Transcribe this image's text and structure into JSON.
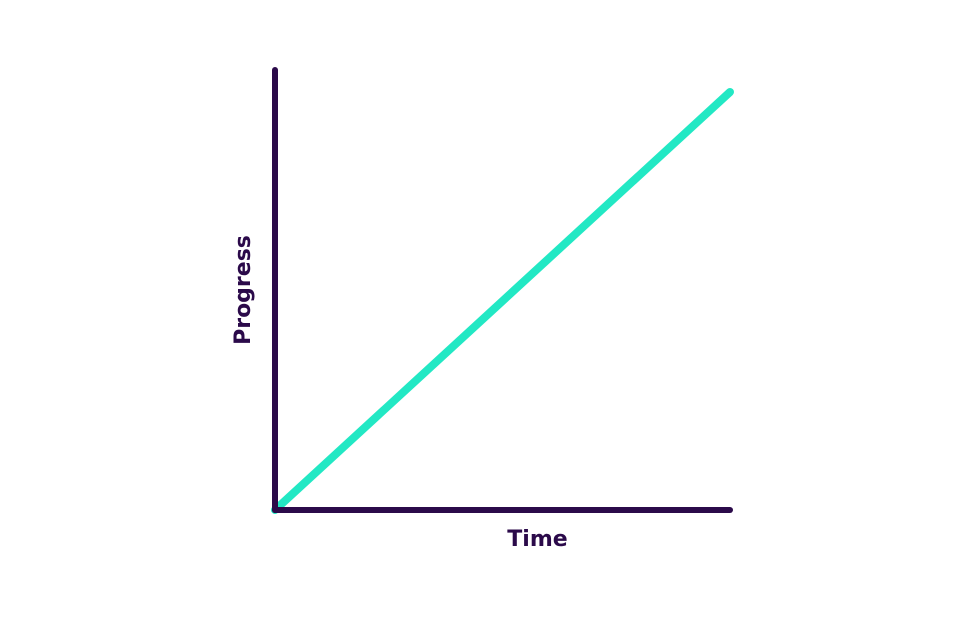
{
  "chart_data": {
    "type": "line",
    "title": "",
    "xlabel": "Time",
    "ylabel": "Progress",
    "x": [
      0,
      1
    ],
    "series": [
      {
        "values": [
          0,
          0.95
        ]
      }
    ],
    "xlim": [
      0,
      1
    ],
    "ylim": [
      0,
      1
    ],
    "grid": false,
    "legend": "none"
  },
  "colors": {
    "axis": "#2b0a4a",
    "series": "#22e8c4",
    "background": "#ffffff"
  }
}
